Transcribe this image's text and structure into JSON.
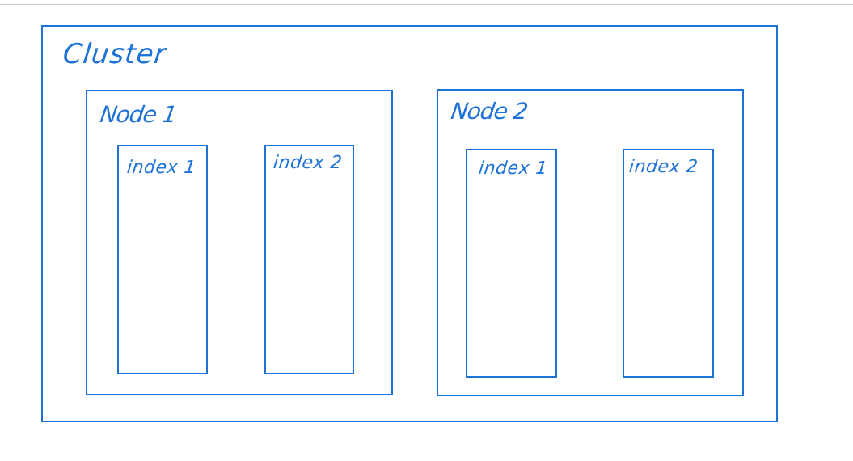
{
  "cluster": {
    "label": "Cluster",
    "nodes": [
      {
        "label": "Node 1",
        "indexes": [
          {
            "label": "index 1"
          },
          {
            "label": "index 2"
          }
        ]
      },
      {
        "label": "Node 2",
        "indexes": [
          {
            "label": "index 1"
          },
          {
            "label": "index 2"
          }
        ]
      }
    ]
  },
  "colors": {
    "stroke": "#1d72d8",
    "background": "#ffffff",
    "top_rule": "#c8ccd2"
  }
}
